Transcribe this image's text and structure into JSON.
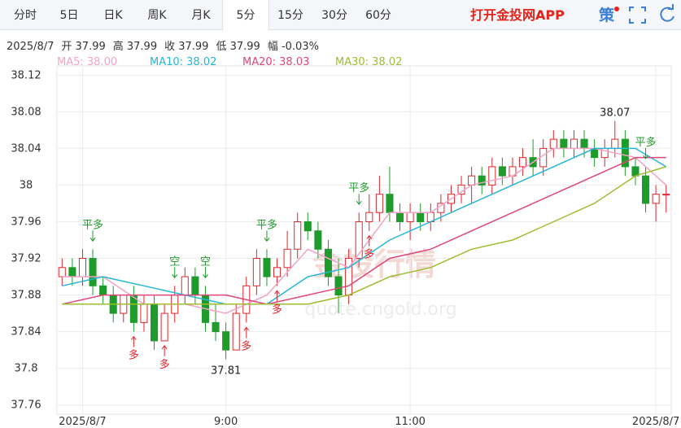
{
  "tabs": [
    "分时",
    "5日",
    "日K",
    "周K",
    "月K",
    "5分",
    "15分",
    "30分",
    "60分"
  ],
  "app_link": "打开金投网APP",
  "strategy_button": "策",
  "info": [
    "2025/8/7",
    "开 37.99",
    "高 37.99",
    "收 37.99",
    "低 37.99",
    "幅 -0.03%"
  ],
  "watermark": [
    "金投行情",
    "quote.cngold.org"
  ],
  "chart_data": {
    "type": "candlestick",
    "up_color": "#e0262b",
    "down_color": "#1f9b2c",
    "xlim": [
      -0.5,
      59.5
    ],
    "xticks": [
      {
        "value": 2,
        "label": "2025/8/7"
      },
      {
        "value": 16,
        "label": "9:00"
      },
      {
        "value": 34,
        "label": "11:00"
      },
      {
        "value": 58,
        "label": "2025/8/7"
      }
    ],
    "ylim": [
      37.75,
      38.13
    ],
    "yticks": [
      37.76,
      37.8,
      37.84,
      37.88,
      37.92,
      37.96,
      38,
      38.04,
      38.08,
      38.12
    ],
    "grid": true,
    "candles": [
      [
        37.9,
        37.92,
        37.89,
        37.91
      ],
      [
        37.91,
        37.92,
        37.89,
        37.9
      ],
      [
        37.9,
        37.93,
        37.89,
        37.92
      ],
      [
        37.92,
        37.93,
        37.88,
        37.89
      ],
      [
        37.89,
        37.9,
        37.87,
        37.88
      ],
      [
        37.88,
        37.89,
        37.85,
        37.86
      ],
      [
        37.86,
        37.88,
        37.85,
        37.88
      ],
      [
        37.88,
        37.89,
        37.84,
        37.85
      ],
      [
        37.85,
        37.88,
        37.84,
        37.87
      ],
      [
        37.87,
        37.88,
        37.82,
        37.83
      ],
      [
        37.83,
        37.87,
        37.83,
        37.86
      ],
      [
        37.86,
        37.89,
        37.85,
        37.88
      ],
      [
        37.88,
        37.91,
        37.87,
        37.9
      ],
      [
        37.9,
        37.91,
        37.87,
        37.88
      ],
      [
        37.88,
        37.89,
        37.84,
        37.85
      ],
      [
        37.85,
        37.87,
        37.83,
        37.84
      ],
      [
        37.84,
        37.85,
        37.81,
        37.82
      ],
      [
        37.82,
        37.87,
        37.82,
        37.86
      ],
      [
        37.86,
        37.9,
        37.85,
        37.89
      ],
      [
        37.89,
        37.93,
        37.88,
        37.92
      ],
      [
        37.92,
        37.93,
        37.89,
        37.9
      ],
      [
        37.9,
        37.92,
        37.89,
        37.91
      ],
      [
        37.91,
        37.95,
        37.9,
        37.93
      ],
      [
        37.93,
        37.97,
        37.92,
        37.96
      ],
      [
        37.96,
        37.97,
        37.94,
        37.95
      ],
      [
        37.95,
        37.96,
        37.92,
        37.93
      ],
      [
        37.93,
        37.94,
        37.89,
        37.9
      ],
      [
        37.9,
        37.92,
        37.86,
        37.88
      ],
      [
        37.88,
        37.93,
        37.87,
        37.92
      ],
      [
        37.92,
        37.97,
        37.91,
        37.96
      ],
      [
        37.96,
        37.99,
        37.95,
        37.97
      ],
      [
        37.97,
        38.01,
        37.96,
        37.99
      ],
      [
        37.99,
        38.02,
        37.96,
        37.97
      ],
      [
        37.97,
        37.98,
        37.95,
        37.96
      ],
      [
        37.96,
        37.98,
        37.94,
        37.97
      ],
      [
        37.97,
        37.98,
        37.95,
        37.96
      ],
      [
        37.96,
        37.98,
        37.95,
        37.97
      ],
      [
        37.97,
        37.99,
        37.96,
        37.98
      ],
      [
        37.98,
        38.0,
        37.97,
        37.99
      ],
      [
        37.99,
        38.01,
        37.98,
        38.0
      ],
      [
        38.0,
        38.02,
        37.98,
        38.01
      ],
      [
        38.01,
        38.02,
        37.99,
        38.0
      ],
      [
        38.0,
        38.03,
        37.99,
        38.02
      ],
      [
        38.02,
        38.03,
        38.0,
        38.01
      ],
      [
        38.01,
        38.03,
        38.0,
        38.02
      ],
      [
        38.02,
        38.04,
        38.01,
        38.03
      ],
      [
        38.03,
        38.05,
        38.01,
        38.02
      ],
      [
        38.02,
        38.05,
        38.01,
        38.04
      ],
      [
        38.04,
        38.06,
        38.03,
        38.05
      ],
      [
        38.05,
        38.06,
        38.03,
        38.04
      ],
      [
        38.04,
        38.06,
        38.03,
        38.05
      ],
      [
        38.05,
        38.06,
        38.03,
        38.04
      ],
      [
        38.04,
        38.05,
        38.02,
        38.03
      ],
      [
        38.03,
        38.05,
        38.02,
        38.04
      ],
      [
        38.04,
        38.07,
        38.03,
        38.05
      ],
      [
        38.05,
        38.06,
        38.01,
        38.02
      ],
      [
        38.02,
        38.03,
        38.0,
        38.01
      ],
      [
        38.01,
        38.02,
        37.97,
        37.98
      ],
      [
        37.98,
        38.0,
        37.96,
        37.99
      ],
      [
        37.99,
        38.0,
        37.97,
        37.99
      ]
    ],
    "ma_x": [
      0,
      4,
      8,
      12,
      16,
      20,
      24,
      28,
      32,
      36,
      40,
      44,
      48,
      52,
      56,
      59
    ],
    "series": [
      {
        "name": "MA5",
        "legend_label": "MA5: 38.00",
        "color": "#f4a3c6",
        "values": [
          37.9,
          37.9,
          37.87,
          37.87,
          37.86,
          37.88,
          37.93,
          37.91,
          37.97,
          37.97,
          38.0,
          38.01,
          38.04,
          38.04,
          38.03,
          38.0
        ]
      },
      {
        "name": "MA10",
        "legend_label": "MA10: 38.02",
        "color": "#27b5d6",
        "values": [
          37.89,
          37.9,
          37.89,
          37.88,
          37.87,
          37.87,
          37.9,
          37.91,
          37.94,
          37.96,
          37.98,
          38.0,
          38.02,
          38.04,
          38.04,
          38.02
        ]
      },
      {
        "name": "MA20",
        "legend_label": "MA20: 38.03",
        "color": "#e0457b",
        "values": [
          37.87,
          37.88,
          37.88,
          37.88,
          37.88,
          37.87,
          37.88,
          37.89,
          37.92,
          37.93,
          37.95,
          37.97,
          37.99,
          38.01,
          38.03,
          38.03
        ]
      },
      {
        "name": "MA30",
        "legend_label": "MA30: 38.02",
        "color": "#9dbd2f",
        "values": [
          37.87,
          37.87,
          37.87,
          37.87,
          37.87,
          37.87,
          37.87,
          37.88,
          37.9,
          37.91,
          37.93,
          37.94,
          37.96,
          37.98,
          38.01,
          38.02
        ]
      }
    ],
    "annotations": [
      {
        "index": 54,
        "value": 38.07,
        "label": "38.07"
      },
      {
        "index": 16,
        "value": 37.81,
        "label": "37.81"
      }
    ],
    "signals": [
      {
        "index": 3,
        "label": "平多",
        "direction": "down",
        "color": "#1f9b2c"
      },
      {
        "index": 7,
        "label": "多",
        "direction": "up",
        "color": "#e0262b"
      },
      {
        "index": 10,
        "label": "多",
        "direction": "up",
        "color": "#e0262b"
      },
      {
        "index": 11,
        "label": "空",
        "direction": "down",
        "color": "#1f9b2c"
      },
      {
        "index": 14,
        "label": "空",
        "direction": "down",
        "color": "#1f9b2c"
      },
      {
        "index": 18,
        "label": "多",
        "direction": "up",
        "color": "#e0262b"
      },
      {
        "index": 20,
        "label": "平多",
        "direction": "down",
        "color": "#1f9b2c"
      },
      {
        "index": 21,
        "label": "多",
        "direction": "up",
        "color": "#e0262b"
      },
      {
        "index": 29,
        "label": "平多",
        "direction": "down",
        "color": "#1f9b2c"
      },
      {
        "index": 30,
        "label": "多",
        "direction": "up",
        "color": "#e0262b"
      },
      {
        "index": 57,
        "label": "平多",
        "direction": "down",
        "color": "#1f9b2c"
      }
    ]
  }
}
